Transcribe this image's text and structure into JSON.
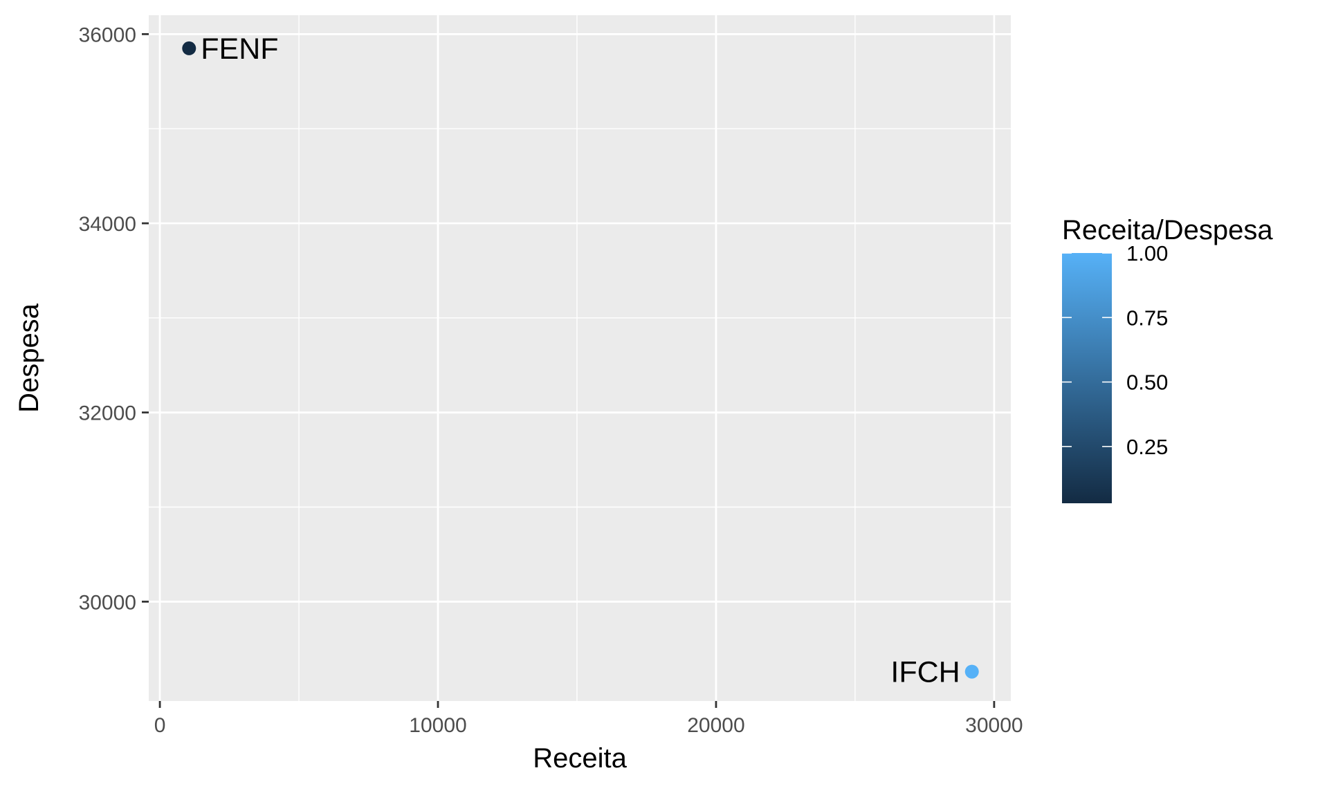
{
  "chart_data": {
    "type": "scatter",
    "xlabel": "Receita",
    "ylabel": "Despesa",
    "xlim": [
      -400,
      30600
    ],
    "ylim": [
      28950,
      36200
    ],
    "x_ticks": [
      0,
      10000,
      20000,
      30000
    ],
    "y_ticks": [
      30000,
      32000,
      34000,
      36000
    ],
    "x_minor": [
      5000,
      15000,
      25000
    ],
    "y_minor": [
      31000,
      33000,
      35000
    ],
    "grid": true,
    "panel_color": "#ebebeb",
    "points": [
      {
        "label": "FENF",
        "x": 1050,
        "y": 35850,
        "ratio": 0.03,
        "color": "#132b43",
        "label_side": "right"
      },
      {
        "label": "IFCH",
        "x": 29200,
        "y": 29260,
        "ratio": 1.0,
        "color": "#56b1f7",
        "label_side": "left"
      }
    ],
    "legend": {
      "title": "Receita/Despesa",
      "placement": "right",
      "low_color": "#132b43",
      "high_color": "#56b1f7",
      "range": [
        0.03,
        1.0
      ],
      "breaks": [
        0.25,
        0.5,
        0.75,
        1.0
      ],
      "break_labels": [
        "0.25",
        "0.50",
        "0.75",
        "1.00"
      ]
    }
  }
}
